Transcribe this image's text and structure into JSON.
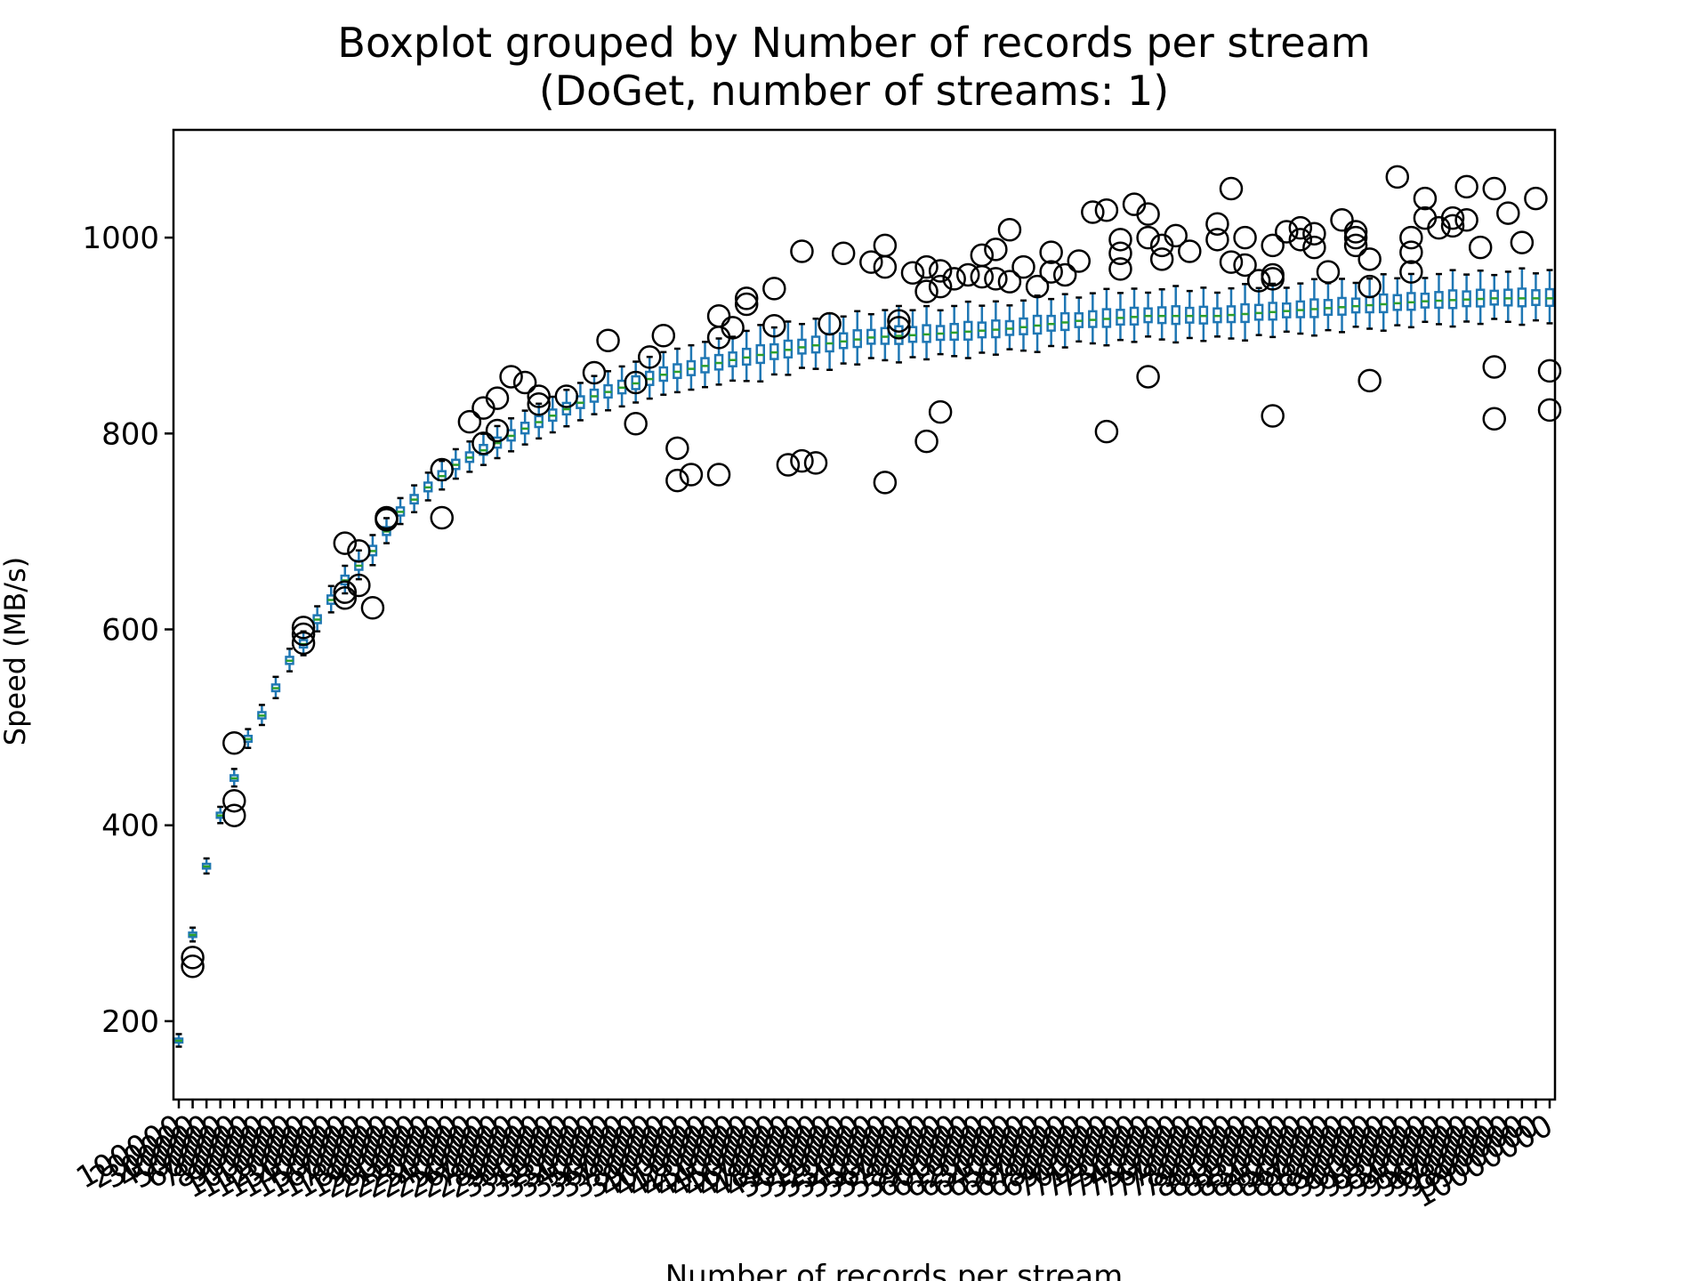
{
  "chart_data": {
    "type": "boxplot",
    "title": "Boxplot grouped by Number of records per stream",
    "subtitle": "(DoGet, number of streams: 1)",
    "xlabel": "Number of records per stream",
    "ylabel": "Speed (MB/s)",
    "ylim": [
      120,
      1110
    ],
    "yticks": [
      200,
      400,
      600,
      800,
      1000
    ],
    "grid": false,
    "legend": "none",
    "n_categories": 100,
    "category_step": 100000,
    "last_category_label": "10000000",
    "tick_label_rotation_deg": 30,
    "colors": {
      "box": "#1f77b4",
      "median": "#2ca02c",
      "whisker_cap": "#000000",
      "flier": "#000000"
    },
    "anchors": {
      "idx": [
        0,
        1,
        2,
        3,
        4,
        5,
        6,
        7,
        8,
        9,
        10,
        12,
        14,
        16,
        18,
        20,
        25,
        30,
        35,
        40,
        45,
        50,
        55,
        60,
        65,
        70,
        75,
        80,
        85,
        90,
        95,
        99
      ],
      "median": [
        180,
        288,
        358,
        410,
        448,
        488,
        512,
        540,
        568,
        585,
        610,
        650,
        680,
        720,
        745,
        768,
        805,
        838,
        860,
        875,
        888,
        898,
        902,
        907,
        915,
        920,
        920,
        925,
        930,
        935,
        938,
        938
      ]
    },
    "fliers": [
      {
        "idx": 1,
        "values": [
          265,
          256
        ]
      },
      {
        "idx": 4,
        "values": [
          484,
          425,
          410
        ]
      },
      {
        "idx": 9,
        "values": [
          602,
          595,
          586
        ]
      },
      {
        "idx": 12,
        "values": [
          688,
          638,
          632
        ]
      },
      {
        "idx": 13,
        "values": [
          680,
          645
        ]
      },
      {
        "idx": 14,
        "values": [
          622
        ]
      },
      {
        "idx": 15,
        "values": [
          714,
          712
        ]
      },
      {
        "idx": 19,
        "values": [
          763,
          714
        ]
      },
      {
        "idx": 21,
        "values": [
          812
        ]
      },
      {
        "idx": 22,
        "values": [
          826,
          790
        ]
      },
      {
        "idx": 23,
        "values": [
          836,
          803
        ]
      },
      {
        "idx": 24,
        "values": [
          858
        ]
      },
      {
        "idx": 25,
        "values": [
          852
        ]
      },
      {
        "idx": 26,
        "values": [
          838,
          830
        ]
      },
      {
        "idx": 28,
        "values": [
          838
        ]
      },
      {
        "idx": 30,
        "values": [
          862
        ]
      },
      {
        "idx": 31,
        "values": [
          895
        ]
      },
      {
        "idx": 33,
        "values": [
          852,
          810
        ]
      },
      {
        "idx": 34,
        "values": [
          878
        ]
      },
      {
        "idx": 35,
        "values": [
          900
        ]
      },
      {
        "idx": 36,
        "values": [
          785,
          752
        ]
      },
      {
        "idx": 37,
        "values": [
          758
        ]
      },
      {
        "idx": 39,
        "values": [
          920,
          898,
          758
        ]
      },
      {
        "idx": 40,
        "values": [
          908
        ]
      },
      {
        "idx": 41,
        "values": [
          938,
          932
        ]
      },
      {
        "idx": 43,
        "values": [
          948,
          910
        ]
      },
      {
        "idx": 44,
        "values": [
          768
        ]
      },
      {
        "idx": 45,
        "values": [
          986,
          772
        ]
      },
      {
        "idx": 46,
        "values": [
          770
        ]
      },
      {
        "idx": 47,
        "values": [
          912
        ]
      },
      {
        "idx": 48,
        "values": [
          984
        ]
      },
      {
        "idx": 50,
        "values": [
          975
        ]
      },
      {
        "idx": 51,
        "values": [
          992,
          970,
          750
        ]
      },
      {
        "idx": 52,
        "values": [
          915,
          908
        ]
      },
      {
        "idx": 53,
        "values": [
          964
        ]
      },
      {
        "idx": 54,
        "values": [
          970,
          945,
          792
        ]
      },
      {
        "idx": 55,
        "values": [
          966,
          950,
          822
        ]
      },
      {
        "idx": 56,
        "values": [
          958
        ]
      },
      {
        "idx": 57,
        "values": [
          962
        ]
      },
      {
        "idx": 58,
        "values": [
          982,
          960
        ]
      },
      {
        "idx": 59,
        "values": [
          988,
          958
        ]
      },
      {
        "idx": 60,
        "values": [
          1008,
          955
        ]
      },
      {
        "idx": 61,
        "values": [
          970
        ]
      },
      {
        "idx": 62,
        "values": [
          950
        ]
      },
      {
        "idx": 63,
        "values": [
          985,
          965
        ]
      },
      {
        "idx": 64,
        "values": [
          962
        ]
      },
      {
        "idx": 65,
        "values": [
          976
        ]
      },
      {
        "idx": 66,
        "values": [
          1026
        ]
      },
      {
        "idx": 67,
        "values": [
          1028,
          802
        ]
      },
      {
        "idx": 68,
        "values": [
          998,
          984,
          968
        ]
      },
      {
        "idx": 69,
        "values": [
          1034
        ]
      },
      {
        "idx": 70,
        "values": [
          1024,
          1000,
          858
        ]
      },
      {
        "idx": 71,
        "values": [
          992,
          978
        ]
      },
      {
        "idx": 72,
        "values": [
          1002
        ]
      },
      {
        "idx": 73,
        "values": [
          986
        ]
      },
      {
        "idx": 75,
        "values": [
          1014,
          998
        ]
      },
      {
        "idx": 76,
        "values": [
          1050,
          975
        ]
      },
      {
        "idx": 77,
        "values": [
          1000,
          972
        ]
      },
      {
        "idx": 78,
        "values": [
          956
        ]
      },
      {
        "idx": 79,
        "values": [
          992,
          962,
          958,
          818
        ]
      },
      {
        "idx": 80,
        "values": [
          1006
        ]
      },
      {
        "idx": 81,
        "values": [
          1010,
          998
        ]
      },
      {
        "idx": 82,
        "values": [
          1004,
          990
        ]
      },
      {
        "idx": 83,
        "values": [
          965
        ]
      },
      {
        "idx": 84,
        "values": [
          1018
        ]
      },
      {
        "idx": 85,
        "values": [
          1006,
          1000,
          992
        ]
      },
      {
        "idx": 86,
        "values": [
          978,
          950,
          854
        ]
      },
      {
        "idx": 88,
        "values": [
          1062
        ]
      },
      {
        "idx": 89,
        "values": [
          1000,
          985,
          965
        ]
      },
      {
        "idx": 90,
        "values": [
          1040,
          1020
        ]
      },
      {
        "idx": 91,
        "values": [
          1010
        ]
      },
      {
        "idx": 92,
        "values": [
          1020,
          1012
        ]
      },
      {
        "idx": 93,
        "values": [
          1052,
          1018
        ]
      },
      {
        "idx": 94,
        "values": [
          990
        ]
      },
      {
        "idx": 95,
        "values": [
          1050,
          868,
          815
        ]
      },
      {
        "idx": 96,
        "values": [
          1025
        ]
      },
      {
        "idx": 97,
        "values": [
          995
        ]
      },
      {
        "idx": 98,
        "values": [
          1040
        ]
      },
      {
        "idx": 99,
        "values": [
          864,
          824
        ]
      }
    ]
  }
}
